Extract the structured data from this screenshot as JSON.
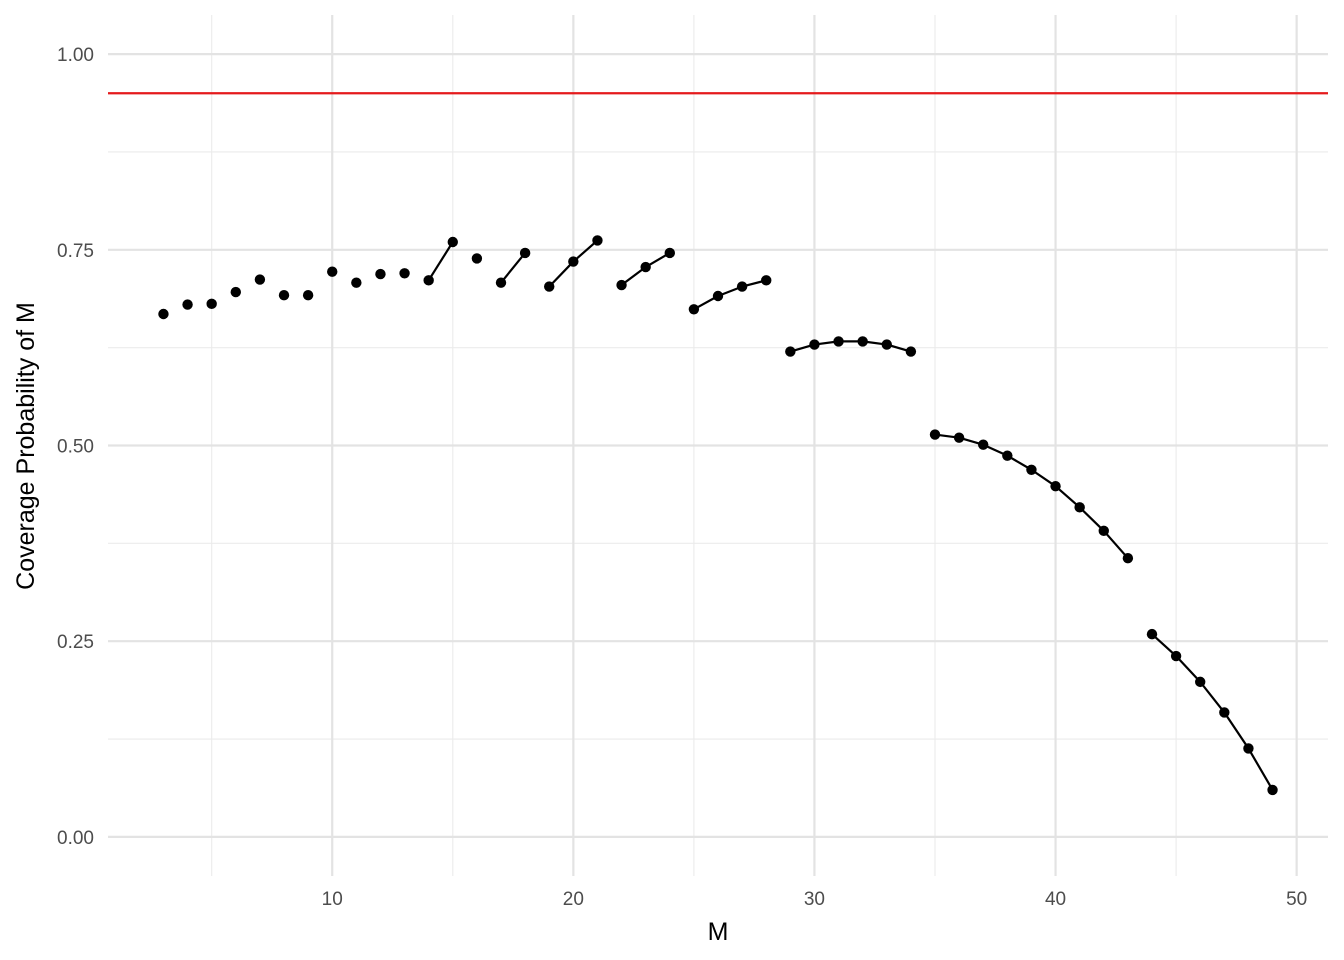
{
  "chart_data": {
    "type": "scatter",
    "title": "",
    "xlabel": "M",
    "ylabel": "Coverage Probability of M",
    "xlim": [
      0.7,
      51.3
    ],
    "ylim": [
      -0.05,
      1.05
    ],
    "x_ticks": [
      10,
      20,
      30,
      40,
      50
    ],
    "x_tick_labels": [
      "10",
      "20",
      "30",
      "40",
      "50"
    ],
    "y_ticks": [
      0,
      0.25,
      0.5,
      0.75,
      1
    ],
    "y_tick_labels": [
      "0.00",
      "0.25",
      "0.50",
      "0.75",
      "1.00"
    ],
    "grid": true,
    "reference_line": {
      "y": 0.95,
      "color": "#e41a1c"
    },
    "point_color": "#000000",
    "line_color": "#000000",
    "points": [
      {
        "x": 3,
        "y": 0.668
      },
      {
        "x": 4,
        "y": 0.68
      },
      {
        "x": 5,
        "y": 0.681
      },
      {
        "x": 6,
        "y": 0.696
      },
      {
        "x": 7,
        "y": 0.712
      },
      {
        "x": 8,
        "y": 0.692
      },
      {
        "x": 9,
        "y": 0.692
      },
      {
        "x": 10,
        "y": 0.722
      },
      {
        "x": 11,
        "y": 0.708
      },
      {
        "x": 12,
        "y": 0.719
      },
      {
        "x": 13,
        "y": 0.72
      },
      {
        "x": 14,
        "y": 0.711
      },
      {
        "x": 15,
        "y": 0.76
      },
      {
        "x": 16,
        "y": 0.739
      },
      {
        "x": 17,
        "y": 0.708
      },
      {
        "x": 18,
        "y": 0.746
      },
      {
        "x": 19,
        "y": 0.703
      },
      {
        "x": 20,
        "y": 0.735
      },
      {
        "x": 21,
        "y": 0.762
      },
      {
        "x": 22,
        "y": 0.705
      },
      {
        "x": 23,
        "y": 0.728
      },
      {
        "x": 24,
        "y": 0.746
      },
      {
        "x": 25,
        "y": 0.674
      },
      {
        "x": 26,
        "y": 0.691
      },
      {
        "x": 27,
        "y": 0.703
      },
      {
        "x": 28,
        "y": 0.711
      },
      {
        "x": 29,
        "y": 0.62
      },
      {
        "x": 30,
        "y": 0.629
      },
      {
        "x": 31,
        "y": 0.633
      },
      {
        "x": 32,
        "y": 0.633
      },
      {
        "x": 33,
        "y": 0.629
      },
      {
        "x": 34,
        "y": 0.62
      },
      {
        "x": 35,
        "y": 0.514
      },
      {
        "x": 36,
        "y": 0.51
      },
      {
        "x": 37,
        "y": 0.501
      },
      {
        "x": 38,
        "y": 0.487
      },
      {
        "x": 39,
        "y": 0.469
      },
      {
        "x": 40,
        "y": 0.448
      },
      {
        "x": 41,
        "y": 0.421
      },
      {
        "x": 42,
        "y": 0.391
      },
      {
        "x": 43,
        "y": 0.356
      },
      {
        "x": 44,
        "y": 0.259
      },
      {
        "x": 45,
        "y": 0.231
      },
      {
        "x": 46,
        "y": 0.198
      },
      {
        "x": 47,
        "y": 0.159
      },
      {
        "x": 48,
        "y": 0.113
      },
      {
        "x": 49,
        "y": 0.06
      }
    ],
    "line_segments": [
      [
        14,
        15
      ],
      [
        17,
        18
      ],
      [
        19,
        20,
        21
      ],
      [
        22,
        23,
        24
      ],
      [
        25,
        26,
        27,
        28
      ],
      [
        29,
        30,
        31,
        32,
        33,
        34
      ],
      [
        35,
        36,
        37,
        38,
        39,
        40,
        41,
        42,
        43
      ],
      [
        44,
        45,
        46,
        47,
        48,
        49
      ]
    ]
  }
}
